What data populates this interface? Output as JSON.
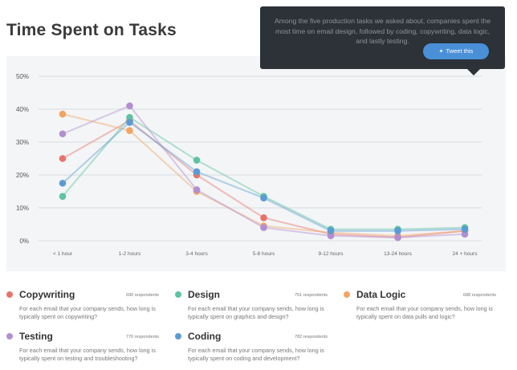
{
  "page": {
    "title": "Time Spent on Tasks"
  },
  "tooltip": {
    "text": "Among the five production tasks we asked about, companies spent the most time on email design, followed by coding, copywriting, data logic, and lastly testing.",
    "tweet_label": "Tweet this",
    "tweet_icon": "twitter-bird-icon"
  },
  "chart_data": {
    "type": "line",
    "categories": [
      "< 1 hour",
      "1-2 hours",
      "3-4 hours",
      "5-8 hours",
      "9-12 hours",
      "13-24 hours",
      "24 + hours"
    ],
    "y_ticks": [
      "0%",
      "10%",
      "20%",
      "30%",
      "40%",
      "50%"
    ],
    "ylim": [
      0,
      50
    ],
    "grid": true,
    "series": [
      {
        "name": "Copywriting",
        "color": "#e8736b",
        "values": [
          25,
          36.5,
          20,
          7,
          2,
          1,
          3
        ]
      },
      {
        "name": "Design",
        "color": "#5ec3a0",
        "values": [
          13.5,
          37.5,
          24.5,
          13.5,
          3.5,
          3.5,
          4
        ]
      },
      {
        "name": "Data Logic",
        "color": "#f2a563",
        "values": [
          38.5,
          33.5,
          15,
          4.5,
          2.5,
          1.5,
          3
        ]
      },
      {
        "name": "Testing",
        "color": "#b38fd1",
        "values": [
          32.5,
          41,
          15.5,
          4,
          1.5,
          1,
          2
        ]
      },
      {
        "name": "Coding",
        "color": "#5b9bd5",
        "values": [
          17.5,
          36,
          21,
          13,
          3,
          3,
          3.5
        ]
      }
    ]
  },
  "legend": {
    "items": [
      {
        "name": "Copywriting",
        "count": "690 respondents",
        "desc": "For each email that your company sends, how long is typically spent on copywriting?",
        "color": "#e8736b"
      },
      {
        "name": "Design",
        "count": "751 respondents",
        "desc": "For each email that your company sends, how long is typically spent on graphics and design?",
        "color": "#5ec3a0"
      },
      {
        "name": "Data Logic",
        "count": "688 respondents",
        "desc": "For each email that your company sends, how long is typically spent on data pulls and logic?",
        "color": "#f2a563"
      },
      {
        "name": "Testing",
        "count": "770 respondents",
        "desc": "For each email that your company sends, how long is typically spent on testing and troubleshooting?",
        "color": "#b38fd1"
      },
      {
        "name": "Coding",
        "count": "782 respondents",
        "desc": "For each email that your company sends, how long is typically spent on coding and development?",
        "color": "#5b9bd5"
      }
    ]
  }
}
